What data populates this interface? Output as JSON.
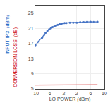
{
  "chart_data": {
    "type": "line",
    "xlabel": "LO POWER (dBm)",
    "annotations": [
      {
        "text": "INPUT IP3  (dBm)",
        "color": "#2060C0"
      },
      {
        "text": "CONVERSION LOSS  (dB)",
        "color": "#CC0000"
      }
    ],
    "series": [
      {
        "x": [
          -10,
          -9,
          -8,
          -7.5,
          -7,
          -6.5,
          -6,
          -5.5,
          -5,
          -4.5,
          -4,
          -3.5,
          -3,
          -2.5,
          -2,
          -1.5,
          -1,
          0,
          1,
          2,
          3,
          4,
          5,
          6,
          7,
          8
        ],
        "values": [
          16.5,
          17.5,
          18.5,
          19.2,
          19.8,
          20.3,
          20.7,
          21.0,
          21.3,
          21.5,
          21.7,
          21.9,
          22.1,
          22.2,
          22.3,
          22.4,
          22.4,
          22.5,
          22.5,
          22.5,
          22.6,
          22.6,
          22.7,
          22.7,
          22.7,
          22.7
        ],
        "color": "#4472C4",
        "marker": "dot"
      },
      {
        "x": [
          -10,
          -9,
          -8,
          -7,
          -6,
          -5,
          -4,
          -3,
          -2,
          -1,
          0,
          1,
          2,
          3,
          4,
          5,
          6,
          7,
          8
        ],
        "values": [
          6.0,
          6.0,
          6.0,
          6.0,
          6.0,
          6.1,
          6.1,
          6.1,
          6.1,
          6.1,
          6.1,
          6.1,
          6.1,
          6.1,
          6.1,
          6.1,
          6.1,
          6.1,
          6.1
        ],
        "color": "#E06060"
      }
    ],
    "xlim": [
      -10,
      10
    ],
    "ylim": [
      5,
      27
    ],
    "xticks": [
      -10,
      -6,
      -2,
      2,
      6,
      10
    ],
    "yticks": [
      5,
      9,
      13,
      17,
      21,
      25
    ],
    "grid": true
  }
}
